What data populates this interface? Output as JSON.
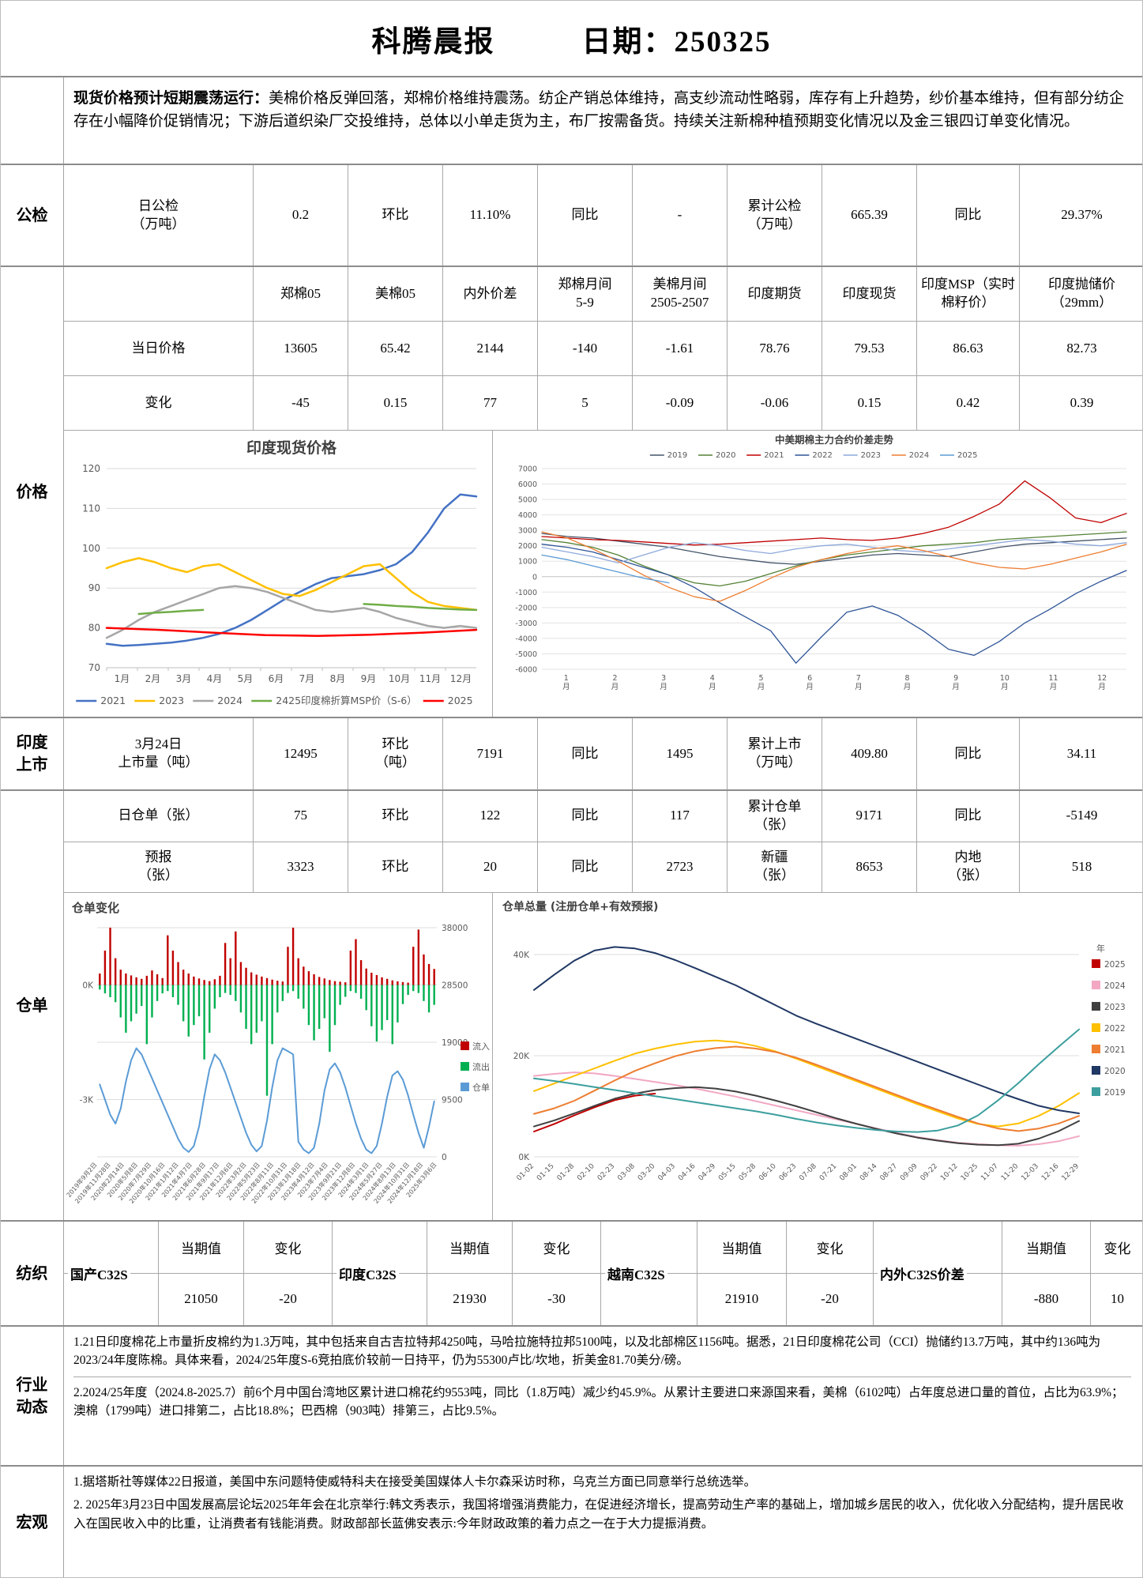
{
  "header": {
    "title": "科腾晨报",
    "date_label": "日期：250325"
  },
  "summary": {
    "lead": "现货价格预计短期震荡运行：",
    "body": "美棉价格反弹回落，郑棉价格维持震荡。纺企产销总体维持，高支纱流动性略弱，库存有上升趋势，纱价基本维持，但有部分纺企存在小幅降价促销情况；下游后道织染厂交投维持，总体以小单走货为主，布厂按需备货。持续关注新棉种植预期变化情况以及金三银四订单变化情况。"
  },
  "gongjian": {
    "section": "公检",
    "cells": [
      "日公检\n（万吨）",
      "0.2",
      "环比",
      "11.10%",
      "同比",
      "-",
      "累计公检\n（万吨）",
      "665.39",
      "同比",
      "29.37%"
    ]
  },
  "price": {
    "section": "价格",
    "headers": [
      "",
      "郑棉05",
      "美棉05",
      "内外价差",
      "郑棉月间\n5-9",
      "美棉月间\n2505-2507",
      "印度期货",
      "印度现货",
      "印度MSP（实时棉籽价）",
      "印度抛储价\n（29mm）"
    ],
    "rows": [
      {
        "label": "当日价格",
        "values": [
          "13605",
          "65.42",
          "2144",
          "-140",
          "-1.61",
          "78.76",
          "79.53",
          "86.63",
          "82.73"
        ]
      },
      {
        "label": "变化",
        "values": [
          "-45",
          "0.15",
          "77",
          "5",
          "-0.09",
          "-0.06",
          "0.15",
          "0.42",
          "0.39"
        ]
      }
    ]
  },
  "india_listing": {
    "section": "印度\n上市",
    "cells": [
      "3月24日\n上市量（吨）",
      "12495",
      "环比\n（吨）",
      "7191",
      "同比",
      "1495",
      "累计上市\n（万吨）",
      "409.80",
      "同比",
      "34.11"
    ]
  },
  "warehouse": {
    "section": "仓单",
    "rows": [
      [
        "日仓单（张）",
        "75",
        "环比",
        "122",
        "同比",
        "117",
        "累计仓单\n（张）",
        "9171",
        "同比",
        "-5149"
      ],
      [
        "预报\n（张）",
        "3323",
        "环比",
        "20",
        "同比",
        "2723",
        "新疆\n（张）",
        "8653",
        "内地\n（张）",
        "518"
      ]
    ]
  },
  "textile": {
    "section": "纺织",
    "value_header": "当期值",
    "change_header": "变化",
    "groups": [
      {
        "name": "国产C32S",
        "value": "21050",
        "change": "-20"
      },
      {
        "name": "印度C32S",
        "value": "21930",
        "change": "-30"
      },
      {
        "name": "越南C32S",
        "value": "21910",
        "change": "-20"
      },
      {
        "name": "内外C32S价差",
        "value": "-880",
        "change": "10"
      }
    ]
  },
  "industry": {
    "section": "行业\n动态",
    "items": [
      "1.21日印度棉花上市量折皮棉约为1.3万吨，其中包括来自古吉拉特邦4250吨，马哈拉施特拉邦5100吨，以及北部棉区1156吨。据悉，21日印度棉花公司（CCI）抛储约13.7万吨，其中约136吨为2023/24年度陈棉。具体来看，2024/25年度S-6竞拍底价较前一日持平，仍为55300卢比/坎地，折美金81.70美分/磅。",
      "2.2024/25年度（2024.8-2025.7）前6个月中国台湾地区累计进口棉花约9553吨，同比（1.8万吨）减少约45.9%。从累计主要进口来源国来看，美棉（6102吨）占年度总进口量的首位，占比为63.9%；澳棉（1799吨）进口排第二，占比18.8%；巴西棉（903吨）排第三，占比9.5%。"
    ]
  },
  "macro": {
    "section": "宏观",
    "items": [
      "1.据塔斯社等媒体22日报道，美国中东问题特使威特科夫在接受美国媒体人卡尔森采访时称，乌克兰方面已同意举行总统选举。",
      "2. 2025年3月23日中国发展高层论坛2025年年会在北京举行:韩文秀表示，我国将增强消费能力，在促进经济增长，提高劳动生产率的基础上，增加城乡居民的收入，优化收入分配结构，提升居民收入在国民收入中的比重，让消费者有钱能消费。财政部部长蓝佛安表示:今年财政政策的着力点之一在于大力提振消费。"
    ]
  },
  "chart_data": [
    {
      "type": "line",
      "title": "印度现货价格",
      "ylim": [
        70,
        120
      ],
      "yticks": [
        70,
        80,
        90,
        100,
        110,
        120
      ],
      "x_labels": [
        "1月",
        "2月",
        "3月",
        "4月",
        "5月",
        "6月",
        "7月",
        "8月",
        "9月",
        "10月",
        "11月",
        "12月"
      ],
      "legend_position": "bottom",
      "grid": true,
      "series": [
        {
          "name": "2021",
          "color": "#4472C4",
          "values": [
            76,
            75.5,
            75.7,
            76,
            76.3,
            76.8,
            77.5,
            78.5,
            80,
            82,
            84.5,
            87,
            89,
            91,
            92.5,
            93,
            93.5,
            94.5,
            96,
            99,
            104,
            110,
            113.5,
            113
          ]
        },
        {
          "name": "2023",
          "color": "#FFC000",
          "values": [
            95,
            96.5,
            97.5,
            96.5,
            95,
            94,
            95.5,
            96,
            94,
            92,
            90,
            88.5,
            88,
            89.5,
            91.5,
            93.5,
            95.5,
            96,
            92.5,
            89,
            86.5,
            85.5,
            85,
            84.5
          ]
        },
        {
          "name": "2024",
          "color": "#A6A6A6",
          "values": [
            77.5,
            79.5,
            82,
            84,
            85.5,
            87,
            88.5,
            90,
            90.5,
            90,
            89,
            87.5,
            86,
            84.5,
            84,
            84.5,
            85,
            84,
            82.5,
            81.5,
            80.5,
            80,
            80.5,
            80
          ]
        },
        {
          "name": "2425印度棉折算MSP价（S-6）",
          "color": "#70AD47",
          "values": [
            null,
            null,
            83.5,
            83.8,
            84,
            84.3,
            84.5,
            null,
            null,
            null,
            null,
            null,
            null,
            null,
            null,
            null,
            86,
            85.8,
            85.5,
            85.3,
            85,
            84.8,
            84.6,
            84.5
          ]
        },
        {
          "name": "2025",
          "color": "#FF0000",
          "values": [
            80,
            79.5,
            78.8,
            78.2,
            78,
            78.3,
            78.8,
            79.5
          ]
        }
      ]
    },
    {
      "type": "line",
      "title": "中美期棉主力合约价差走势",
      "ylim": [
        -6000,
        7000
      ],
      "ytick_step": 1000,
      "x_labels": [
        "1月",
        "2月",
        "3月",
        "4月",
        "5月",
        "6月",
        "7月",
        "8月",
        "9月",
        "10月",
        "11月",
        "12月"
      ],
      "legend_position": "top",
      "grid": true,
      "series": [
        {
          "name": "2019",
          "color": "#44546A",
          "values": [
            2800,
            2600,
            2500,
            2300,
            2100,
            1900,
            1600,
            1300,
            1100,
            900,
            800,
            1000,
            1200,
            1400,
            1500,
            1400,
            1300,
            1600,
            1900,
            2100,
            2200,
            2300,
            2400,
            2500
          ]
        },
        {
          "name": "2020",
          "color": "#548235",
          "values": [
            2400,
            2200,
            1900,
            1400,
            700,
            100,
            -400,
            -600,
            -300,
            200,
            700,
            1100,
            1400,
            1600,
            1800,
            2000,
            2100,
            2200,
            2400,
            2500,
            2600,
            2700,
            2800,
            2900
          ]
        },
        {
          "name": "2021",
          "color": "#C00000",
          "values": [
            2600,
            2500,
            2400,
            2350,
            2250,
            2150,
            2050,
            2100,
            2200,
            2300,
            2400,
            2500,
            2400,
            2350,
            2500,
            2800,
            3200,
            3900,
            4700,
            6200,
            5100,
            3800,
            3500,
            4100
          ]
        },
        {
          "name": "2022",
          "color": "#2F5597",
          "values": [
            2100,
            1900,
            1600,
            1100,
            600,
            100,
            -700,
            -1700,
            -2600,
            -3500,
            -5600,
            -3900,
            -2300,
            -1900,
            -2500,
            -3500,
            -4700,
            -5100,
            -4200,
            -3000,
            -2100,
            -1100,
            -300,
            400
          ]
        },
        {
          "name": "2023",
          "color": "#8EA9DB",
          "values": [
            1900,
            1600,
            1300,
            900,
            1400,
            1900,
            2200,
            2000,
            1700,
            1500,
            1800,
            2000,
            2100,
            1900,
            1700,
            1600,
            1800,
            2000,
            2200,
            2400,
            2300,
            2100,
            2000,
            2200
          ]
        },
        {
          "name": "2024",
          "color": "#ED7D31",
          "values": [
            2900,
            2500,
            1800,
            1000,
            100,
            -700,
            -1300,
            -1600,
            -900,
            -100,
            600,
            1100,
            1500,
            1800,
            2000,
            1700,
            1300,
            900,
            600,
            500,
            800,
            1200,
            1600,
            2100
          ]
        },
        {
          "name": "2025",
          "color": "#5B9BD5",
          "values": [
            1400,
            1100,
            700,
            300,
            -100,
            -400
          ]
        }
      ]
    },
    {
      "type": "combo_bar_line",
      "title": "仓单变化",
      "left_axis_labels": [
        {
          "value": 0,
          "label": "0K"
        },
        {
          "value": -3000,
          "label": "-3K"
        }
      ],
      "right_yticks": [
        38000,
        28500,
        19000,
        9500,
        0
      ],
      "legend": [
        {
          "name": "流入",
          "color": "#C00000"
        },
        {
          "name": "流出",
          "color": "#00B050"
        },
        {
          "name": "仓单",
          "color": "#5B9BD5"
        }
      ],
      "x_labels": [
        "2019年9月2日",
        "2019年11月28日",
        "2020年2月14日",
        "2020年5月8日",
        "2020年7月29日",
        "2020年10月16日",
        "2021年1月12日",
        "2021年4月7日",
        "2021年6月28日",
        "2021年9月17日",
        "2021年12月6日",
        "2022年3月2日",
        "2022年5月23日",
        "2022年8月11日",
        "2022年10月31日",
        "2023年1月18日",
        "2023年4月12日",
        "2023年7月4日",
        "2023年9月21日",
        "2023年12月8日",
        "2024年3月1日",
        "2024年5月27日",
        "2024年8月13日",
        "2024年10月31日",
        "2024年12月18日",
        "2025年3月6日"
      ],
      "line_series": {
        "name": "仓单",
        "color": "#5B9BD5",
        "values": [
          12000,
          9500,
          7000,
          5500,
          8000,
          12500,
          16000,
          18000,
          17000,
          15000,
          13000,
          11000,
          9000,
          7000,
          5000,
          3000,
          1500,
          800,
          1800,
          5000,
          10000,
          14500,
          17000,
          16000,
          14000,
          11500,
          9000,
          6500,
          4000,
          2000,
          900,
          1800,
          6000,
          11500,
          16000,
          18000,
          17500,
          17000,
          2500,
          1200,
          600,
          1500,
          5500,
          11000,
          14500,
          15500,
          14000,
          11500,
          8500,
          5500,
          3000,
          1200,
          600,
          1800,
          5500,
          10000,
          13500,
          14200,
          12800,
          10200,
          7000,
          4000,
          1500,
          5000,
          9200
        ]
      },
      "bar_inflow": {
        "name": "流入",
        "color": "#C00000",
        "values": [
          300,
          900,
          1500,
          700,
          400,
          300,
          250,
          200,
          160,
          240,
          380,
          280,
          180,
          1300,
          900,
          600,
          400,
          300,
          220,
          170,
          130,
          100,
          150,
          240,
          1100,
          700,
          1400,
          600,
          450,
          330,
          270,
          220,
          180,
          140,
          110,
          90,
          1000,
          1500,
          700,
          480,
          360,
          280,
          210,
          170,
          130,
          100,
          85,
          70,
          900,
          1200,
          650,
          430,
          320,
          260,
          200,
          160,
          120,
          95,
          75,
          60,
          1000,
          1450,
          800,
          550,
          420
        ]
      },
      "bar_outflow": {
        "name": "流出",
        "color": "#00B050",
        "values": [
          120,
          220,
          320,
          450,
          850,
          1250,
          950,
          750,
          550,
          1550,
          850,
          420,
          220,
          160,
          320,
          520,
          950,
          1350,
          1050,
          820,
          1950,
          1250,
          620,
          320,
          210,
          260,
          420,
          720,
          1150,
          1550,
          1250,
          950,
          2900,
          1550,
          720,
          420,
          210,
          160,
          360,
          620,
          1050,
          1450,
          1150,
          870,
          1750,
          1050,
          520,
          310,
          160,
          210,
          360,
          660,
          1080,
          1480,
          1180,
          920,
          1550,
          980,
          500,
          260,
          160,
          210,
          420,
          720,
          520
        ]
      }
    },
    {
      "type": "line",
      "title": "仓单总量 (注册仓单+有效预报)",
      "ylim": [
        0,
        45000
      ],
      "yticks": [
        {
          "value": 0,
          "label": "0K"
        },
        {
          "value": 20000,
          "label": "20K"
        },
        {
          "value": 40000,
          "label": "40K"
        }
      ],
      "legend_title": "年",
      "legend_position": "right",
      "x_labels": [
        "01-02",
        "01-15",
        "01-28",
        "02-10",
        "02-23",
        "03-08",
        "03-20",
        "04-03",
        "04-16",
        "04-29",
        "05-15",
        "05-28",
        "06-10",
        "06-23",
        "07-08",
        "07-21",
        "08-01",
        "08-14",
        "08-27",
        "09-09",
        "09-22",
        "10-12",
        "10-25",
        "11-07",
        "11-20",
        "12-03",
        "12-16",
        "12-29"
      ],
      "series": [
        {
          "name": "2025",
          "color": "#C00000",
          "values": [
            5000,
            6500,
            8200,
            9800,
            11200,
            12100,
            12500,
            null,
            null,
            null,
            null,
            null,
            null,
            null,
            null,
            null,
            null,
            null,
            null,
            null,
            null,
            null,
            null,
            null,
            null,
            null,
            null,
            null
          ]
        },
        {
          "name": "2024",
          "color": "#F2A7C3",
          "values": [
            16000,
            16400,
            16700,
            16500,
            16000,
            15400,
            14800,
            14200,
            13500,
            12700,
            11900,
            11000,
            10100,
            9200,
            8300,
            7400,
            6500,
            5600,
            4700,
            3900,
            3300,
            2800,
            2500,
            2300,
            2200,
            2500,
            3100,
            4100
          ]
        },
        {
          "name": "2023",
          "color": "#404040",
          "values": [
            6000,
            7200,
            8600,
            10100,
            11500,
            12500,
            13200,
            13600,
            13800,
            13500,
            12900,
            12100,
            11100,
            10000,
            8800,
            7600,
            6500,
            5500,
            4600,
            3800,
            3200,
            2700,
            2400,
            2300,
            2600,
            3600,
            5100,
            7100
          ]
        },
        {
          "name": "2022",
          "color": "#FFC000",
          "values": [
            13000,
            14500,
            16000,
            17500,
            19000,
            20400,
            21400,
            22200,
            22800,
            23000,
            22700,
            21900,
            20800,
            19400,
            17900,
            16400,
            14900,
            13400,
            11900,
            10400,
            9000,
            7600,
            6500,
            6000,
            6600,
            8100,
            10100,
            12600
          ]
        },
        {
          "name": "2021",
          "color": "#ED7D31",
          "values": [
            8500,
            9600,
            11100,
            13100,
            15100,
            17000,
            18500,
            19900,
            20900,
            21500,
            21800,
            21400,
            20700,
            19600,
            18200,
            16700,
            15200,
            13700,
            12200,
            10700,
            9300,
            7900,
            6600,
            5600,
            5100,
            5600,
            6600,
            8100
          ]
        },
        {
          "name": "2020",
          "color": "#203864",
          "values": [
            33000,
            36000,
            38800,
            40800,
            41500,
            41200,
            40300,
            38900,
            37300,
            35600,
            33900,
            31900,
            29900,
            27900,
            26300,
            24800,
            23300,
            21800,
            20300,
            18800,
            17300,
            15800,
            14300,
            12800,
            11400,
            10100,
            9200,
            8600
          ]
        },
        {
          "name": "2019",
          "color": "#3C9E9E",
          "values": [
            15500,
            15000,
            14400,
            13800,
            13200,
            12600,
            12000,
            11400,
            10800,
            10200,
            9600,
            9000,
            8300,
            7500,
            6800,
            6200,
            5700,
            5300,
            5000,
            4900,
            5200,
            6200,
            8200,
            11200,
            14600,
            18300,
            21800,
            25200
          ]
        }
      ]
    }
  ]
}
